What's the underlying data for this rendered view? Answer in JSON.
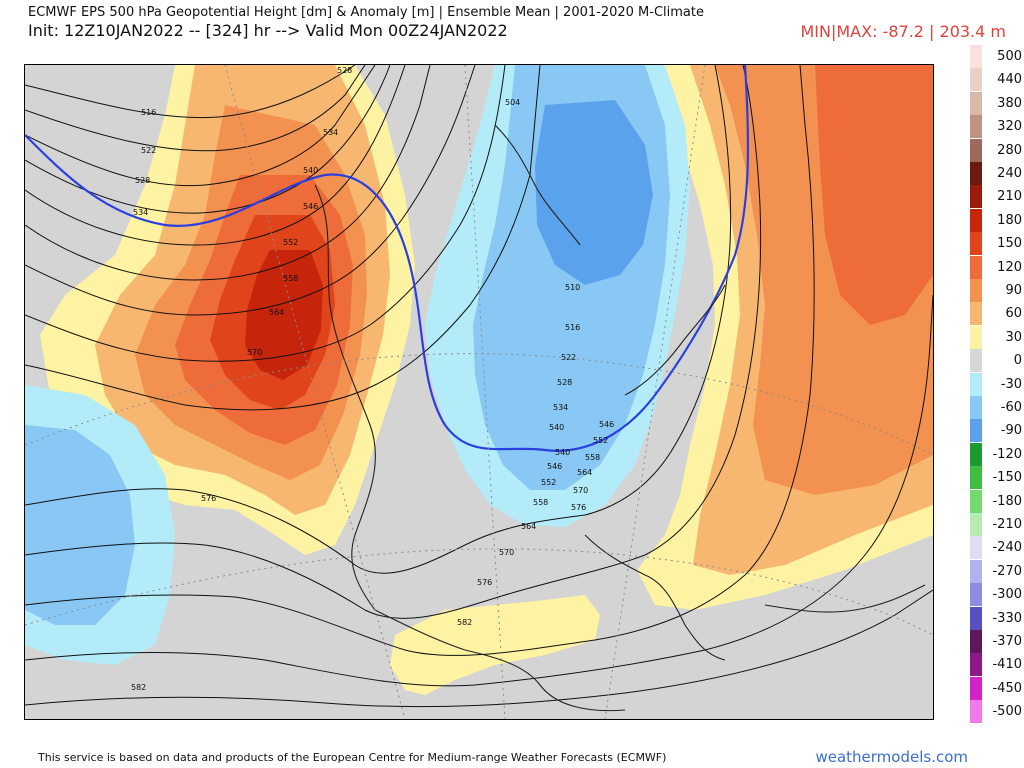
{
  "header": {
    "title": "ECMWF EPS 500 hPa Geopotential Height [dm] & Anomaly [m] | Ensemble Mean | 2001-2020 M-Climate",
    "init": "Init: 12Z10JAN2022 -- [324] hr --> Valid Mon 00Z24JAN2022",
    "minmax": "MIN|MAX: -87.2 | 203.4 m"
  },
  "map": {
    "contour_labels": [
      "528",
      "534",
      "540",
      "546",
      "552",
      "558",
      "564",
      "570",
      "576",
      "582",
      "516",
      "522",
      "528",
      "534",
      "540",
      "546",
      "552",
      "558",
      "564",
      "570",
      "576",
      "582",
      "504",
      "510",
      "516",
      "522",
      "528",
      "534",
      "540",
      "546",
      "552",
      "558",
      "564",
      "570",
      "576"
    ]
  },
  "legend": {
    "entries": [
      {
        "label": "500",
        "color": "#fbe0dc"
      },
      {
        "label": "440",
        "color": "#ecd2c6"
      },
      {
        "label": "380",
        "color": "#d9b8a8"
      },
      {
        "label": "320",
        "color": "#bf9383"
      },
      {
        "label": "280",
        "color": "#9f6a5e"
      },
      {
        "label": "240",
        "color": "#6b1a12"
      },
      {
        "label": "210",
        "color": "#9b1c0c"
      },
      {
        "label": "180",
        "color": "#c7250b"
      },
      {
        "label": "150",
        "color": "#e0441a"
      },
      {
        "label": "120",
        "color": "#ee6b3a"
      },
      {
        "label": "90",
        "color": "#f39150"
      },
      {
        "label": "60",
        "color": "#f8b770"
      },
      {
        "label": "30",
        "color": "#fdf3a2"
      },
      {
        "label": "0",
        "color": "#d7d7d7"
      },
      {
        "label": "-30",
        "color": "#b3ecf8"
      },
      {
        "label": "-60",
        "color": "#89c8f4"
      },
      {
        "label": "-90",
        "color": "#5aa3ec"
      },
      {
        "label": "-120",
        "color": "#1c9a32"
      },
      {
        "label": "-150",
        "color": "#3fbf3f"
      },
      {
        "label": "-180",
        "color": "#76d870"
      },
      {
        "label": "-210",
        "color": "#b6ecb2"
      },
      {
        "label": "-240",
        "color": "#dcdcf4"
      },
      {
        "label": "-270",
        "color": "#b2b2ee"
      },
      {
        "label": "-300",
        "color": "#8c8ce0"
      },
      {
        "label": "-330",
        "color": "#5a4fc0"
      },
      {
        "label": "-370",
        "color": "#5c1858"
      },
      {
        "label": "-410",
        "color": "#8e1a8a"
      },
      {
        "label": "-450",
        "color": "#d420c8"
      },
      {
        "label": "-500",
        "color": "#f27ae8"
      }
    ]
  },
  "footer": {
    "note": "This service is based on data and products of the European Centre for Medium-range Weather Forecasts (ECMWF)",
    "brand": "weathermodels.com"
  }
}
